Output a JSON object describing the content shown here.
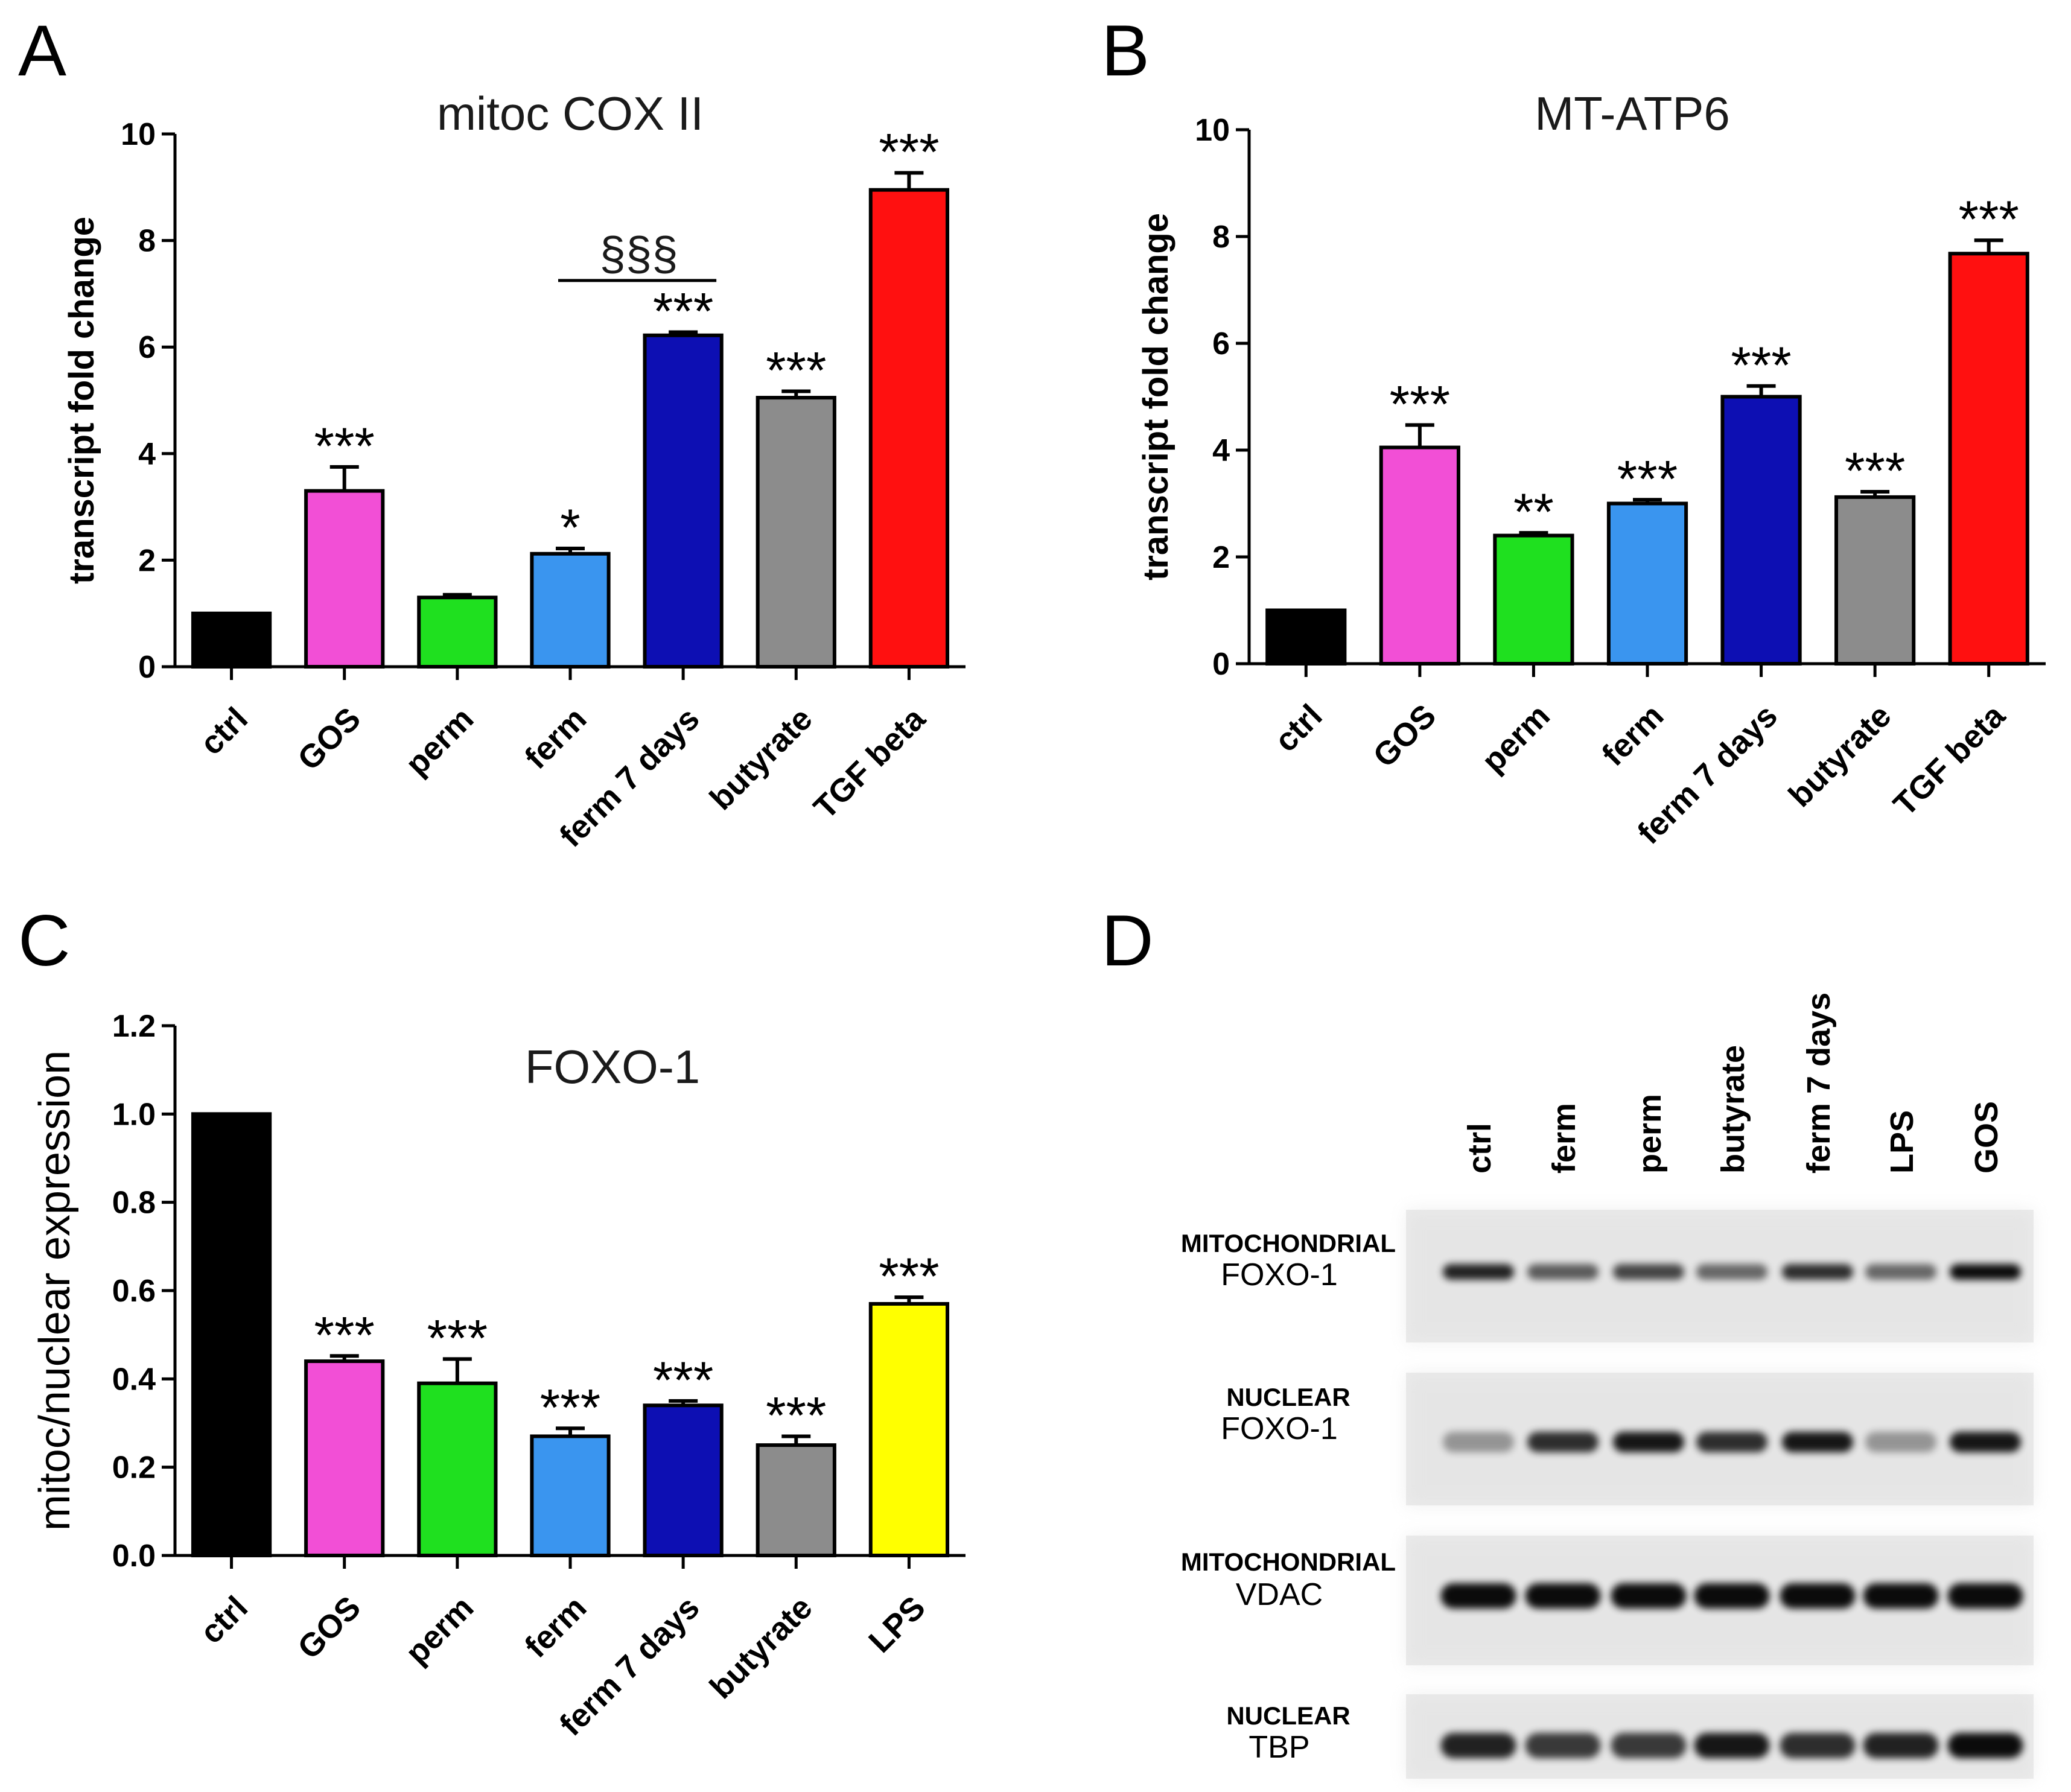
{
  "colors": {
    "ctrl": "#000000",
    "GOS": "#f24fd6",
    "perm": "#1fe01f",
    "ferm": "#3a95ef",
    "ferm 7 days": "#0d0fb3",
    "butyrate": "#8c8c8c",
    "TGF beta": "#ff1010",
    "LPS": "#ffff00"
  },
  "panels": {
    "A": "A",
    "B": "B",
    "C": "C",
    "D": "D"
  },
  "chart_data": [
    {
      "panel": "A",
      "type": "bar",
      "title": "mitoc COX II",
      "ylabel": "transcript fold change",
      "ylim": [
        0,
        10
      ],
      "yticks": [
        "0",
        "2",
        "4",
        "6",
        "8",
        "10"
      ],
      "categories": [
        "ctrl",
        "GOS",
        "perm",
        "ferm",
        "ferm 7 days",
        "butyrate",
        "TGF beta"
      ],
      "values": [
        1.0,
        3.3,
        1.3,
        2.12,
        6.22,
        5.05,
        8.95
      ],
      "errors": [
        0.0,
        0.45,
        0.05,
        0.1,
        0.06,
        0.12,
        0.32
      ],
      "significance": [
        "",
        "***",
        "",
        "*",
        "***",
        "***",
        "***"
      ],
      "comparison": {
        "from": "ferm",
        "to": "ferm 7 days",
        "label": "§§§"
      }
    },
    {
      "panel": "B",
      "type": "bar",
      "title": "MT-ATP6",
      "ylabel": "transcript fold change",
      "ylim": [
        0,
        10
      ],
      "yticks": [
        "0",
        "2",
        "4",
        "6",
        "8",
        "10"
      ],
      "categories": [
        "ctrl",
        "GOS",
        "perm",
        "ferm",
        "ferm 7 days",
        "butyrate",
        "TGF beta"
      ],
      "values": [
        1.0,
        4.05,
        2.4,
        3.0,
        5.0,
        3.12,
        7.68
      ],
      "errors": [
        0.0,
        0.42,
        0.05,
        0.07,
        0.2,
        0.1,
        0.25
      ],
      "significance": [
        "",
        "***",
        "**",
        "***",
        "***",
        "***",
        "***"
      ]
    },
    {
      "panel": "C",
      "type": "bar",
      "title": "FOXO-1",
      "ylabel": "mitoc/nuclear expression",
      "ylim": [
        0,
        1.2
      ],
      "yticks": [
        "0.0",
        "0.2",
        "0.4",
        "0.6",
        "0.8",
        "1.0",
        "1.2"
      ],
      "categories": [
        "ctrl",
        "GOS",
        "perm",
        "ferm",
        "ferm 7 days",
        "butyrate",
        "LPS"
      ],
      "values": [
        1.0,
        0.44,
        0.39,
        0.27,
        0.34,
        0.25,
        0.57
      ],
      "errors": [
        0.0,
        0.012,
        0.055,
        0.018,
        0.01,
        0.02,
        0.015
      ],
      "significance": [
        "",
        "***",
        "***",
        "***",
        "***",
        "***",
        "***"
      ]
    }
  ],
  "blot": {
    "panel": "D",
    "lanes": [
      "ctrl",
      "ferm",
      "perm",
      "butyrate",
      "ferm 7 days",
      "LPS",
      "GOS"
    ],
    "rows": [
      {
        "top": "MITOCHONDRIAL",
        "sub": "FOXO-1"
      },
      {
        "top": "NUCLEAR",
        "sub": "FOXO-1"
      },
      {
        "top": "MITOCHONDRIAL",
        "sub": "VDAC"
      },
      {
        "top": "NUCLEAR",
        "sub": "TBP"
      }
    ]
  }
}
